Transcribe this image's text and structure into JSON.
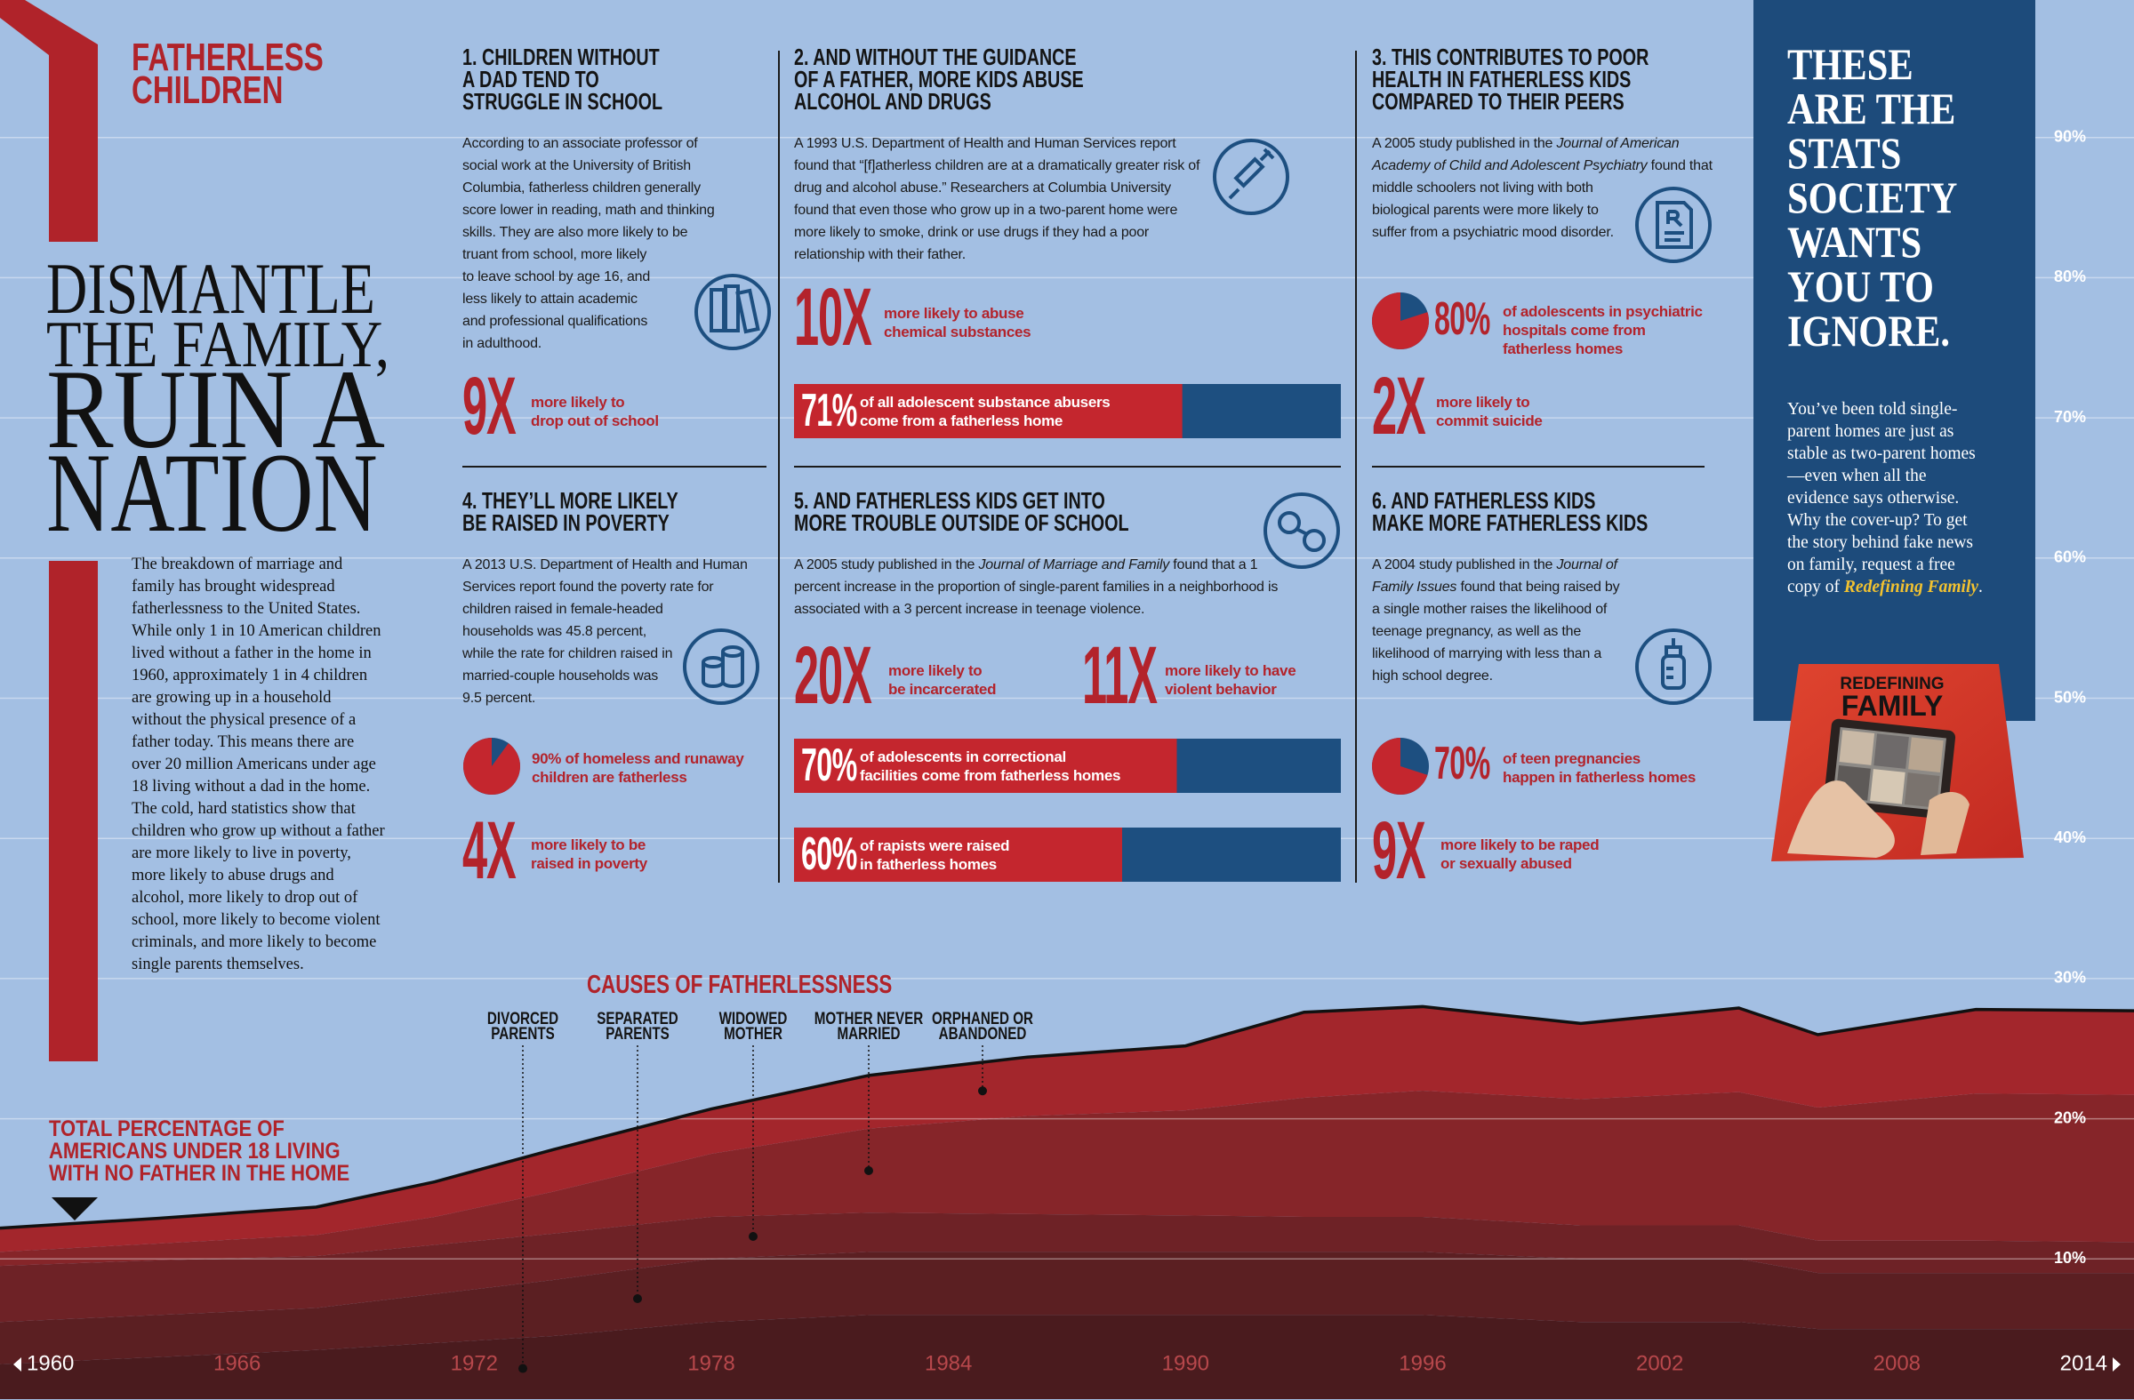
{
  "header": {
    "kicker": "FATHERLESS\nCHILDREN",
    "headline": [
      "DISMANTLE",
      "THE FAMILY,",
      "RUIN A",
      "NATION"
    ],
    "intro": "The breakdown of marriage and family has brought widespread fatherlessness to the United States. While only 1 in 10 American children lived without a father in the home in 1960, approximately 1 in 4 children are growing up in a household without the physical presence of a father today. This means there are over 20 million Americans under age 18 living without a dad in the home. The cold, hard statistics show that children who grow up without a father are more likely to live in poverty, more likely to abuse drugs and alcohol, more likely to drop out of school, more likely to become violent criminals, and more likely to become single parents themselves."
  },
  "sections": [
    {
      "title": "1. CHILDREN WITHOUT\nA DAD TEND TO\nSTRUGGLE IN SCHOOL",
      "body": [
        {
          "text": "According to an associate professor of social work at the University of British Columbia, fatherless children generally score lower in reading, math and thinking skills. They are also more likely to be truant from school, more likely to leave school by age 16, and less likely to attain academic and professional qualifications in adulthood."
        }
      ],
      "stats": [
        {
          "kind": "factor",
          "label": "9X",
          "text": "more likely to\ndrop out of school"
        }
      ]
    },
    {
      "title": "2. AND WITHOUT THE GUIDANCE\nOF A FATHER, MORE KIDS ABUSE\nALCOHOL AND DRUGS",
      "body": [
        {
          "text": "A 1993 U.S. Department of Health and Human Services report found that “[f]atherless children are at a dramatically greater risk of drug and alcohol abuse.” Researchers at Columbia University found that even those who grow up in a two-parent home were more likely to smoke, drink or use drugs if they had a poor relationship with their father."
        }
      ],
      "stats": [
        {
          "kind": "factor",
          "label": "10X",
          "text": "more likely to abuse\nchemical substances"
        },
        {
          "kind": "bar",
          "value": 71,
          "label": "71%",
          "text": "of all adolescent substance abusers\ncome from a fatherless home"
        }
      ]
    },
    {
      "title": "3. THIS CONTRIBUTES TO POOR\nHEALTH IN FATHERLESS KIDS\nCOMPARED TO THEIR PEERS",
      "body": [
        {
          "text": "A 2005 study published in the "
        },
        {
          "text": "Journal of American Academy of Child and Adolescent Psychiatry",
          "italic": true
        },
        {
          "text": " found that middle schoolers not living with both biological parents were more likely to suffer from a psychiatric mood disorder."
        }
      ],
      "stats": [
        {
          "kind": "pie",
          "value": 80,
          "label": "80%",
          "text": "of adolescents in psychiatric\nhospitals come from\nfatherless homes"
        },
        {
          "kind": "factor",
          "label": "2X",
          "text": "more likely to\ncommit suicide"
        }
      ]
    },
    {
      "title": "4. THEY’LL MORE LIKELY\nBE RAISED IN POVERTY",
      "body": [
        {
          "text": "A 2013 U.S. Department of Health and Human Services report found the poverty rate for children raised in female-headed households was 45.8 percent, while the rate for children raised in married-couple households was 9.5 percent."
        }
      ],
      "stats": [
        {
          "kind": "pie",
          "value": 90,
          "text": "90% of homeless and runaway\nchildren are fatherless"
        },
        {
          "kind": "factor",
          "label": "4X",
          "text": "more likely to be\nraised in poverty"
        }
      ]
    },
    {
      "title": "5. AND FATHERLESS KIDS GET INTO\nMORE TROUBLE OUTSIDE OF SCHOOL",
      "body": [
        {
          "text": "A 2005 study published in the "
        },
        {
          "text": "Journal of Marriage and Family",
          "italic": true
        },
        {
          "text": " found that a 1 percent increase in the proportion of single-parent families in a neighborhood is associated with a 3 percent increase in teenage violence."
        }
      ],
      "stats": [
        {
          "kind": "factor",
          "label": "20X",
          "text": "more likely to\nbe incarcerated"
        },
        {
          "kind": "factor",
          "label": "11X",
          "text": "more likely to have\nviolent behavior"
        },
        {
          "kind": "bar",
          "value": 70,
          "label": "70%",
          "text": "of adolescents in correctional\nfacilities come from fatherless homes"
        },
        {
          "kind": "bar",
          "value": 60,
          "label": "60%",
          "text": "of rapists were raised\nin fatherless homes"
        }
      ]
    },
    {
      "title": "6. AND FATHERLESS KIDS\nMAKE MORE FATHERLESS KIDS",
      "body": [
        {
          "text": "A 2004 study published in the "
        },
        {
          "text": "Journal of Family Issues",
          "italic": true
        },
        {
          "text": " found that being raised by a single mother raises the likelihood of teenage pregnancy, as well as the likelihood of marrying with less than a high school degree."
        }
      ],
      "stats": [
        {
          "kind": "pie",
          "value": 70,
          "label": "70%",
          "text": "of teen pregnancies\nhappen in fatherless homes"
        },
        {
          "kind": "factor",
          "label": "9X",
          "text": "more likely to be raped\nor sexually abused"
        }
      ]
    }
  ],
  "sidebar": {
    "heading": "THESE\nARE THE\nSTATS\nSOCIETY\nWANTS\nYOU TO\nIGNORE.",
    "body": [
      {
        "text": "You’ve been told single-parent homes are just as stable as two-parent homes—even when all the evidence says otherwise. Why the cover-up? To get the story behind fake news on family, request a free copy of "
      },
      {
        "text": "Redefining Family",
        "italic": true
      },
      {
        "text": "."
      }
    ],
    "book": {
      "title_top": "REDEFINING",
      "title_bottom": "FAMILY"
    }
  },
  "chart_data": {
    "type": "area",
    "title": "CAUSES OF FATHERLESSNESS",
    "annotation": "TOTAL PERCENTAGE OF\nAMERICANS UNDER 18 LIVING\nWITH NO FATHER IN THE HOME",
    "x": [
      1960,
      1964,
      1968,
      1971,
      1974,
      1978,
      1982,
      1986,
      1990,
      1993,
      1996,
      2000,
      2004,
      2006,
      2010,
      2014
    ],
    "xlim": [
      1960,
      2014
    ],
    "xticks": [
      1960,
      1966,
      1972,
      1978,
      1984,
      1990,
      1996,
      2002,
      2008,
      2014
    ],
    "ylim": [
      0,
      100
    ],
    "yticks": [
      {
        "value": 10,
        "label": "10%"
      },
      {
        "value": 20,
        "label": "20%"
      },
      {
        "value": 30,
        "label": "30%"
      },
      {
        "value": 40,
        "label": "40%"
      },
      {
        "value": 50,
        "label": "50%"
      },
      {
        "value": 60,
        "label": "60%"
      },
      {
        "value": 70,
        "label": "70%"
      },
      {
        "value": 80,
        "label": "80%"
      },
      {
        "value": 90,
        "label": "90%"
      }
    ],
    "grid": true,
    "stacked": true,
    "line_color": "#111111",
    "series": [
      {
        "name": "DIVORCED PARENTS",
        "color": "#4a1b1e",
        "values": [
          2.5,
          3,
          3.5,
          4,
          4.5,
          5.5,
          6,
          6,
          6,
          6,
          6,
          5.5,
          5.5,
          5,
          5,
          5
        ]
      },
      {
        "name": "SEPARATED PARENTS",
        "color": "#5b1f22",
        "values": [
          3,
          3,
          3,
          3.5,
          4,
          4.5,
          4.5,
          4.5,
          4.5,
          4.5,
          4.5,
          4.5,
          4.5,
          4,
          4,
          4
        ]
      },
      {
        "name": "WIDOWED MOTHER",
        "color": "#6e2226",
        "values": [
          4,
          3.9,
          3.7,
          3.5,
          3.3,
          3,
          2.8,
          2.7,
          2.6,
          2.5,
          2.5,
          2.4,
          2.4,
          2.3,
          2.3,
          2.2
        ]
      },
      {
        "name": "MOTHER NEVER MARRIED",
        "color": "#862529",
        "values": [
          1,
          1.2,
          1.5,
          2,
          3,
          4.5,
          6,
          7,
          7.5,
          8.5,
          9,
          9,
          9.5,
          9.5,
          10.5,
          10.5
        ]
      },
      {
        "name": "ORPHANED OR ABANDONED",
        "color": "#a3262c",
        "values": [
          1.7,
          1.8,
          2.0,
          2.5,
          3.0,
          3.2,
          3.8,
          4.2,
          4.6,
          6.1,
          6.0,
          5.4,
          6.0,
          5.2,
          6.0,
          6.0
        ]
      }
    ]
  }
}
